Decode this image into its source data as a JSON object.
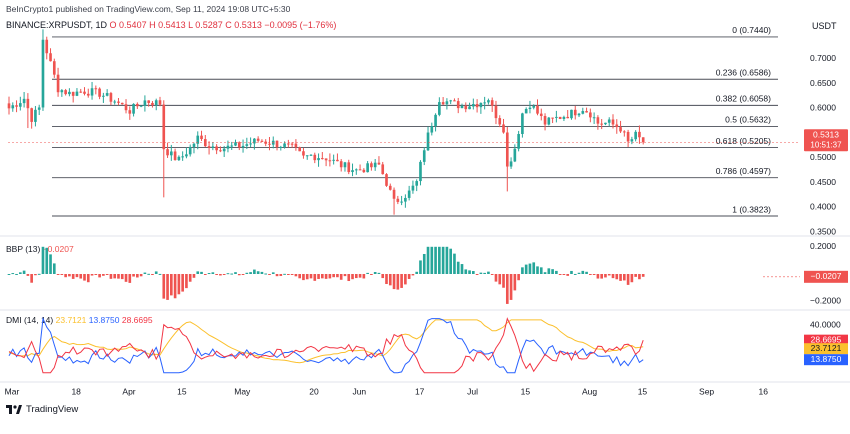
{
  "header": {
    "publisher_line": "BeInCrypto1 published on TradingView.com, Sep 11, 2024 19:08 UTC+5:30",
    "symbol": "BINANCE:XRPUSDT, 1D",
    "ohlc_text": "O 0.5407 H 0.5413 L 0.5287 C 0.5313 −0.0095 (−1.76%)",
    "currency": "USDT"
  },
  "colors": {
    "up": "#26a69a",
    "down": "#ef5350",
    "fib_line": "#787b86",
    "dmi_plus": "#2962ff",
    "dmi_minus": "#f23645",
    "adx": "#fbc02d",
    "price_label_bg": "#ef5350",
    "bbp_label_bg": "#ef5350"
  },
  "footer": {
    "logo_text": "TradingView"
  },
  "chart_data": [
    {
      "type": "candlestick",
      "pane": "price",
      "price_axis_ticks": [
        "0.7000",
        "0.6500",
        "0.6000",
        "0.5500",
        "0.5000",
        "0.4500",
        "0.4000",
        "0.3500"
      ],
      "ylim": [
        0.35,
        0.75
      ],
      "current_price_label": "0.5313",
      "countdown_label": "10:51:37",
      "fib_levels": [
        {
          "label": "0 (0.7440)",
          "value": 0.744
        },
        {
          "label": "0.236 (0.6586)",
          "value": 0.6586
        },
        {
          "label": "0.382 (0.6058)",
          "value": 0.6058
        },
        {
          "label": "0.5 (0.5632)",
          "value": 0.5632
        },
        {
          "label": "0.618 (0.5205)",
          "value": 0.5205
        },
        {
          "label": "0.786 (0.4597)",
          "value": 0.4597
        },
        {
          "label": "1 (0.3823)",
          "value": 0.3823
        }
      ],
      "anchors": [
        [
          0,
          0.6
        ],
        [
          2,
          0.61
        ],
        [
          4,
          0.62
        ],
        [
          6,
          0.58
        ],
        [
          8,
          0.6
        ],
        [
          9,
          0.74
        ],
        [
          11,
          0.69
        ],
        [
          13,
          0.64
        ],
        [
          16,
          0.63
        ],
        [
          20,
          0.635
        ],
        [
          24,
          0.63
        ],
        [
          28,
          0.615
        ],
        [
          32,
          0.595
        ],
        [
          36,
          0.615
        ],
        [
          40,
          0.61
        ],
        [
          41,
          0.52
        ],
        [
          43,
          0.505
        ],
        [
          45,
          0.495
        ],
        [
          48,
          0.52
        ],
        [
          50,
          0.54
        ],
        [
          53,
          0.525
        ],
        [
          57,
          0.52
        ],
        [
          62,
          0.525
        ],
        [
          66,
          0.535
        ],
        [
          70,
          0.53
        ],
        [
          75,
          0.52
        ],
        [
          78,
          0.5
        ],
        [
          80,
          0.505
        ],
        [
          84,
          0.5
        ],
        [
          88,
          0.485
        ],
        [
          92,
          0.475
        ],
        [
          95,
          0.48
        ],
        [
          98,
          0.485
        ],
        [
          100,
          0.45
        ],
        [
          102,
          0.41
        ],
        [
          104,
          0.42
        ],
        [
          106,
          0.43
        ],
        [
          108,
          0.45
        ],
        [
          110,
          0.52
        ],
        [
          112,
          0.57
        ],
        [
          114,
          0.62
        ],
        [
          117,
          0.61
        ],
        [
          120,
          0.605
        ],
        [
          124,
          0.61
        ],
        [
          127,
          0.62
        ],
        [
          128,
          0.6
        ],
        [
          131,
          0.56
        ],
        [
          132,
          0.48
        ],
        [
          134,
          0.52
        ],
        [
          136,
          0.59
        ],
        [
          138,
          0.61
        ],
        [
          140,
          0.59
        ],
        [
          142,
          0.57
        ],
        [
          145,
          0.58
        ],
        [
          149,
          0.59
        ],
        [
          152,
          0.6
        ],
        [
          154,
          0.59
        ],
        [
          156,
          0.57
        ],
        [
          159,
          0.57
        ],
        [
          162,
          0.56
        ],
        [
          164,
          0.53
        ],
        [
          166,
          0.545
        ],
        [
          168,
          0.5313
        ]
      ],
      "x_ticks": [
        {
          "label": "Mar",
          "day": 0
        },
        {
          "label": "18",
          "day": 17
        },
        {
          "label": "Apr",
          "day": 31
        },
        {
          "label": "15",
          "day": 45
        },
        {
          "label": "May",
          "day": 61
        },
        {
          "label": "20",
          "day": 80
        },
        {
          "label": "Jun",
          "day": 92
        },
        {
          "label": "17",
          "day": 108
        },
        {
          "label": "Jul",
          "day": 122
        },
        {
          "label": "15",
          "day": 136
        },
        {
          "label": "Aug",
          "day": 153
        },
        {
          "label": "15",
          "day": 167
        },
        {
          "label": "Sep",
          "day": 184
        },
        {
          "label": "16",
          "day": 199
        }
      ],
      "x_days_total": 200,
      "candle_days": 169
    },
    {
      "type": "bar",
      "pane": "bbp",
      "title": "BBP (13)",
      "value_text": "−0.0207",
      "axis_ticks": [
        "0.2000",
        "−0.2000"
      ],
      "ylim": [
        -0.25,
        0.25
      ],
      "current_value_label": "−0.0207"
    },
    {
      "type": "line",
      "pane": "dmi",
      "title": "DMI (14, 14)",
      "values_text": [
        "23.7121",
        "13.8750",
        "28.6695"
      ],
      "axis_ticks": [
        "40.0000",
        "20.0000"
      ],
      "ylim": [
        0,
        50
      ],
      "series": [
        {
          "name": "ADX",
          "last_label": "23.7121"
        },
        {
          "name": "+DI",
          "last_label": "13.8750"
        },
        {
          "name": "−DI",
          "last_label": "28.6695"
        }
      ]
    }
  ]
}
